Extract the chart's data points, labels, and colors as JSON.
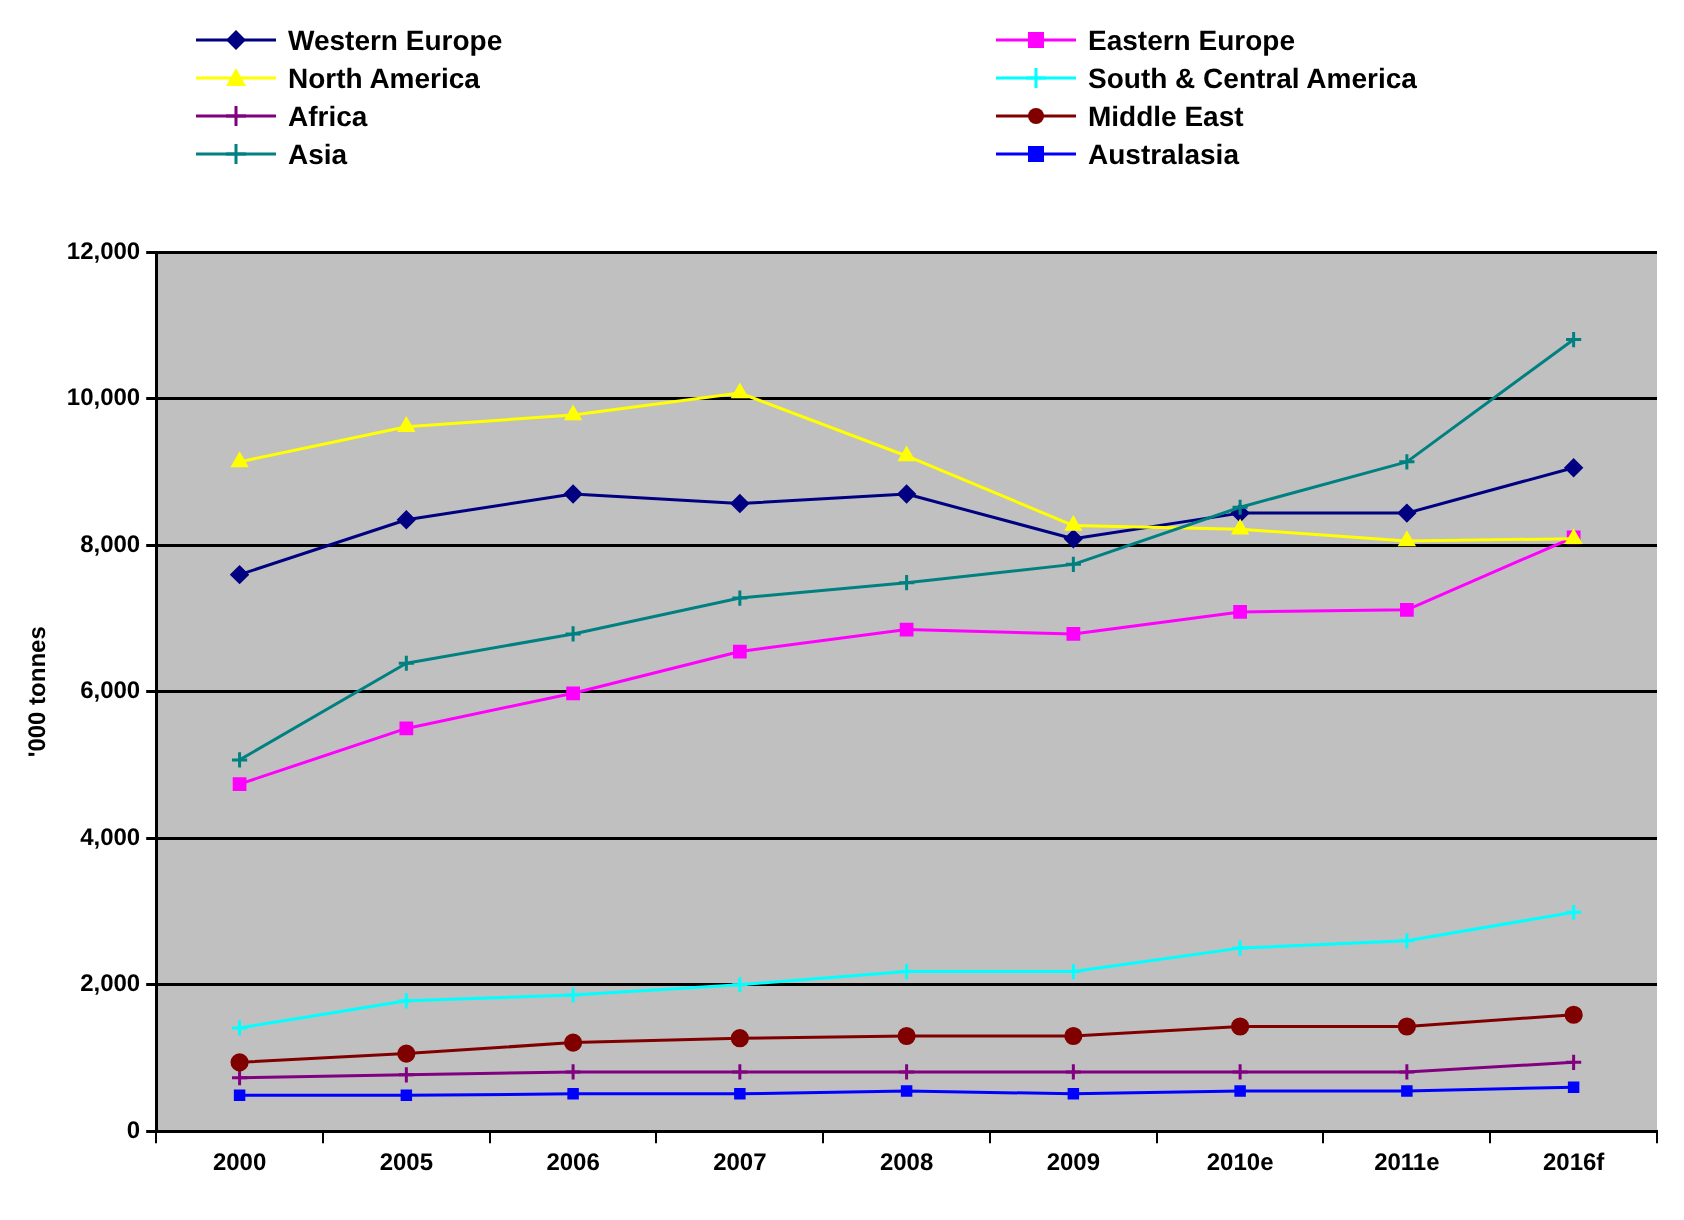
{
  "chart_data": {
    "type": "line",
    "ylabel": "'000 tonnes",
    "categories": [
      "2000",
      "2005",
      "2006",
      "2007",
      "2008",
      "2009",
      "2010e",
      "2011e",
      "2016f"
    ],
    "ylim": [
      0,
      12000
    ],
    "yticks": [
      {
        "value": 0,
        "label": "0"
      },
      {
        "value": 2000,
        "label": "2,000"
      },
      {
        "value": 4000,
        "label": "4,000"
      },
      {
        "value": 6000,
        "label": "6,000"
      },
      {
        "value": 8000,
        "label": "8,000"
      },
      {
        "value": 10000,
        "label": "10,000"
      },
      {
        "value": 12000,
        "label": "12,000"
      }
    ],
    "grid": "y",
    "legend": "top",
    "line_style": "solid",
    "series": [
      {
        "name": "Western Europe",
        "color": "#000080",
        "marker": "diamond",
        "values": [
          7600,
          8350,
          8700,
          8570,
          8700,
          8090,
          8440,
          8440,
          9060
        ]
      },
      {
        "name": "Eastern Europe",
        "color": "#ff00ff",
        "marker": "square",
        "values": [
          4740,
          5500,
          5980,
          6550,
          6850,
          6790,
          7090,
          7120,
          8110
        ]
      },
      {
        "name": "North America",
        "color": "#ffff00",
        "marker": "triangle",
        "values": [
          9140,
          9620,
          9780,
          10080,
          9220,
          8270,
          8220,
          8060,
          8090
        ]
      },
      {
        "name": "South & Central America",
        "color": "#00ffff",
        "marker": "cross",
        "values": [
          1410,
          1780,
          1860,
          2000,
          2180,
          2180,
          2500,
          2600,
          2990
        ]
      },
      {
        "name": "Africa",
        "color": "#800080",
        "marker": "cross",
        "values": [
          730,
          770,
          810,
          810,
          810,
          810,
          810,
          810,
          940
        ]
      },
      {
        "name": "Middle East",
        "color": "#800000",
        "marker": "circle",
        "values": [
          940,
          1060,
          1210,
          1270,
          1300,
          1300,
          1430,
          1430,
          1590
        ]
      },
      {
        "name": "Asia",
        "color": "#008080",
        "marker": "cross",
        "values": [
          5070,
          6390,
          6790,
          7280,
          7490,
          7740,
          8520,
          9140,
          10810
        ]
      },
      {
        "name": "Australasia",
        "color": "#0000ff",
        "marker": "square",
        "values": [
          490,
          490,
          510,
          510,
          550,
          510,
          550,
          550,
          600
        ]
      }
    ]
  }
}
